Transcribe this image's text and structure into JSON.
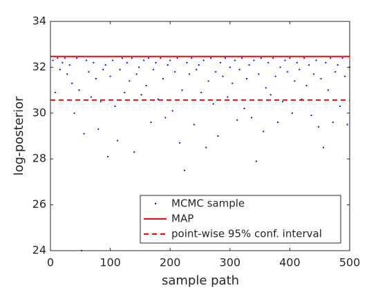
{
  "chart_data": {
    "type": "scatter",
    "xlabel": "sample path",
    "ylabel": "log-posterior",
    "xlim": [
      0,
      500
    ],
    "ylim": [
      24,
      34
    ],
    "xticks": [
      0,
      100,
      200,
      300,
      400,
      500
    ],
    "yticks": [
      24,
      26,
      28,
      30,
      32,
      34
    ],
    "grid": false,
    "legend": "lower right",
    "series": [
      {
        "name": "MCMC sample",
        "color": "#0000ff",
        "x": [
          4,
          8,
          12,
          16,
          20,
          24,
          28,
          32,
          36,
          40,
          44,
          48,
          52,
          56,
          60,
          64,
          68,
          72,
          76,
          80,
          84,
          88,
          92,
          96,
          100,
          104,
          108,
          112,
          116,
          120,
          124,
          128,
          132,
          136,
          140,
          144,
          148,
          152,
          156,
          160,
          164,
          168,
          172,
          176,
          180,
          184,
          188,
          192,
          196,
          200,
          204,
          208,
          212,
          216,
          220,
          224,
          228,
          232,
          236,
          240,
          244,
          248,
          252,
          256,
          260,
          264,
          268,
          272,
          276,
          280,
          284,
          288,
          292,
          296,
          300,
          304,
          308,
          312,
          316,
          320,
          324,
          328,
          332,
          336,
          340,
          344,
          348,
          352,
          356,
          360,
          364,
          368,
          372,
          376,
          380,
          384,
          388,
          392,
          396,
          400,
          404,
          408,
          412,
          416,
          420,
          424,
          428,
          432,
          436,
          440,
          444,
          448,
          452,
          456,
          460,
          464,
          468,
          472,
          476,
          480,
          484,
          488,
          492,
          496,
          500
        ],
        "values": [
          32.3,
          30.9,
          32.4,
          31.9,
          32.2,
          32.4,
          31.7,
          32.1,
          31.3,
          30.0,
          32.4,
          31.0,
          24.0,
          29.1,
          32.3,
          31.8,
          30.7,
          32.2,
          31.5,
          29.3,
          30.5,
          31.9,
          32.1,
          28.1,
          31.6,
          32.3,
          30.3,
          28.8,
          31.9,
          32.4,
          30.9,
          32.2,
          31.4,
          32.4,
          28.3,
          31.7,
          32.0,
          30.8,
          32.3,
          31.2,
          32.4,
          29.6,
          31.9,
          32.2,
          30.6,
          32.4,
          31.5,
          29.8,
          32.1,
          32.3,
          30.1,
          31.8,
          32.4,
          28.7,
          31.0,
          27.5,
          32.2,
          31.7,
          32.4,
          29.5,
          31.9,
          32.1,
          30.9,
          32.3,
          28.5,
          31.4,
          32.4,
          30.4,
          31.8,
          29.0,
          32.2,
          31.6,
          32.4,
          30.7,
          32.0,
          31.3,
          32.3,
          29.7,
          31.9,
          32.4,
          30.2,
          31.5,
          32.1,
          29.8,
          32.3,
          27.9,
          31.7,
          32.4,
          29.2,
          31.1,
          32.2,
          30.8,
          32.4,
          31.6,
          29.6,
          32.0,
          30.5,
          32.3,
          31.8,
          32.4,
          30.0,
          31.4,
          32.2,
          31.9,
          30.6,
          32.4,
          31.2,
          32.1,
          29.9,
          31.7,
          32.3,
          29.4,
          31.5,
          28.5,
          32.2,
          31.0,
          32.4,
          29.6,
          31.8,
          32.1,
          30.3,
          32.4,
          31.6,
          29.5,
          32.0
        ]
      }
    ],
    "hlines": [
      {
        "name": "MAP",
        "value": 32.47,
        "color": "#ff0000",
        "dashed": false
      },
      {
        "name": "point-wise 95% conf. interval",
        "value": 30.57,
        "color": "#ff0000",
        "dashed": true
      }
    ]
  }
}
